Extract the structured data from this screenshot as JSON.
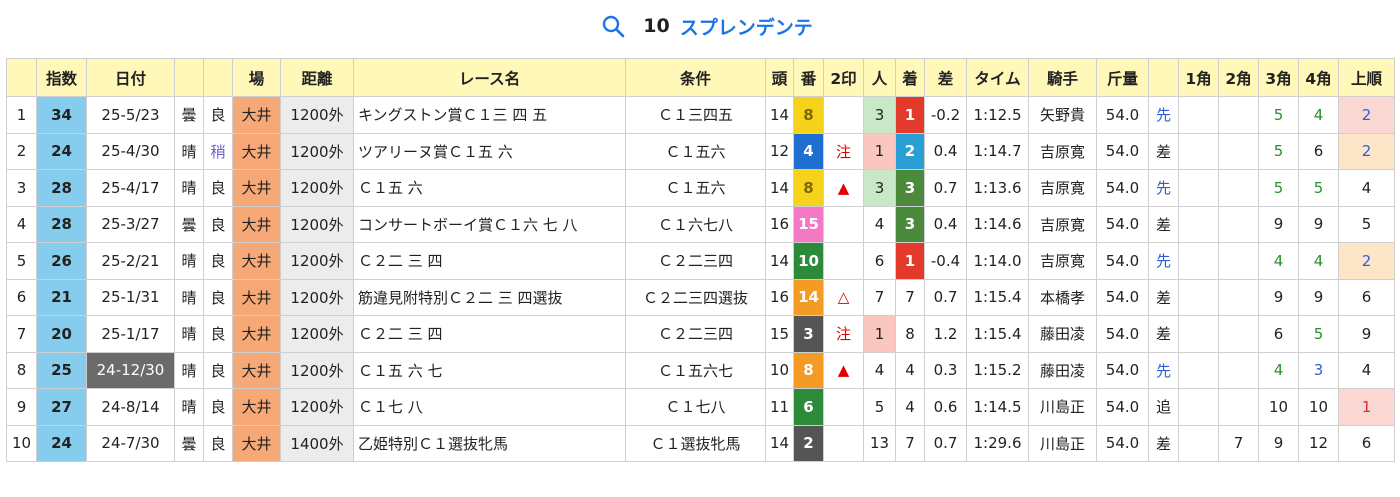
{
  "header": {
    "horse_number": "10",
    "horse_name": "スプレンデンテ"
  },
  "columns": [
    "",
    "指数",
    "日付",
    "",
    "",
    "場",
    "距離",
    "レース名",
    "条件",
    "頭",
    "番",
    "2印",
    "人",
    "着",
    "差",
    "タイム",
    "騎手",
    "斤量",
    "",
    "1角",
    "2角",
    "3角",
    "4角",
    "上順"
  ],
  "rows": [
    {
      "no": "1",
      "ix": "34",
      "date": "25-5/23",
      "wx": "曇",
      "track": "良",
      "place": "大井",
      "dist": "1200外",
      "race": "キングストン賞Ｃ１三 四 五",
      "cond": "Ｃ１三四五",
      "heads": "14",
      "gate": "8",
      "mark": "",
      "pop": "3",
      "fin": "1",
      "diff": "-0.2",
      "time": "1:12.5",
      "jockey": "矢野貴",
      "wt": "54.0",
      "style": "先",
      "c1": "",
      "c2": "",
      "c3": "5",
      "c4": "4",
      "agari": "2"
    },
    {
      "no": "2",
      "ix": "24",
      "date": "25-4/30",
      "wx": "晴",
      "track": "稍",
      "place": "大井",
      "dist": "1200外",
      "race": "ツアリーヌ賞Ｃ１五 六",
      "cond": "Ｃ１五六",
      "heads": "12",
      "gate": "4",
      "mark": "注",
      "pop": "1",
      "fin": "2",
      "diff": "0.4",
      "time": "1:14.7",
      "jockey": "吉原寛",
      "wt": "54.0",
      "style": "差",
      "c1": "",
      "c2": "",
      "c3": "5",
      "c4": "6",
      "agari": "2"
    },
    {
      "no": "3",
      "ix": "28",
      "date": "25-4/17",
      "wx": "晴",
      "track": "良",
      "place": "大井",
      "dist": "1200外",
      "race": "Ｃ１五 六",
      "cond": "Ｃ１五六",
      "heads": "14",
      "gate": "8",
      "mark": "▲",
      "pop": "3",
      "fin": "3",
      "diff": "0.7",
      "time": "1:13.6",
      "jockey": "吉原寛",
      "wt": "54.0",
      "style": "先",
      "c1": "",
      "c2": "",
      "c3": "5",
      "c4": "5",
      "agari": "4"
    },
    {
      "no": "4",
      "ix": "28",
      "date": "25-3/27",
      "wx": "曇",
      "track": "良",
      "place": "大井",
      "dist": "1200外",
      "race": "コンサートボーイ賞Ｃ１六 七 八",
      "cond": "Ｃ１六七八",
      "heads": "16",
      "gate": "15",
      "mark": "",
      "pop": "4",
      "fin": "3",
      "diff": "0.4",
      "time": "1:14.6",
      "jockey": "吉原寛",
      "wt": "54.0",
      "style": "差",
      "c1": "",
      "c2": "",
      "c3": "9",
      "c4": "9",
      "agari": "5"
    },
    {
      "no": "5",
      "ix": "26",
      "date": "25-2/21",
      "wx": "晴",
      "track": "良",
      "place": "大井",
      "dist": "1200外",
      "race": "Ｃ２二 三 四",
      "cond": "Ｃ２二三四",
      "heads": "14",
      "gate": "10",
      "mark": "",
      "pop": "6",
      "fin": "1",
      "diff": "-0.4",
      "time": "1:14.0",
      "jockey": "吉原寛",
      "wt": "54.0",
      "style": "先",
      "c1": "",
      "c2": "",
      "c3": "4",
      "c4": "4",
      "agari": "2"
    },
    {
      "no": "6",
      "ix": "21",
      "date": "25-1/31",
      "wx": "晴",
      "track": "良",
      "place": "大井",
      "dist": "1200外",
      "race": "筋違見附特別Ｃ２二 三 四選抜",
      "cond": "Ｃ２二三四選抜",
      "heads": "16",
      "gate": "14",
      "mark": "△",
      "pop": "7",
      "fin": "7",
      "diff": "0.7",
      "time": "1:15.4",
      "jockey": "本橋孝",
      "wt": "54.0",
      "style": "差",
      "c1": "",
      "c2": "",
      "c3": "9",
      "c4": "9",
      "agari": "6"
    },
    {
      "no": "7",
      "ix": "20",
      "date": "25-1/17",
      "wx": "晴",
      "track": "良",
      "place": "大井",
      "dist": "1200外",
      "race": "Ｃ２二 三 四",
      "cond": "Ｃ２二三四",
      "heads": "15",
      "gate": "3",
      "mark": "注",
      "pop": "1",
      "fin": "8",
      "diff": "1.2",
      "time": "1:15.4",
      "jockey": "藤田凌",
      "wt": "54.0",
      "style": "差",
      "c1": "",
      "c2": "",
      "c3": "6",
      "c4": "5",
      "agari": "9"
    },
    {
      "no": "8",
      "ix": "25",
      "date": "24-12/30",
      "wx": "晴",
      "track": "良",
      "place": "大井",
      "dist": "1200外",
      "race": "Ｃ１五 六 七",
      "cond": "Ｃ１五六七",
      "heads": "10",
      "gate": "8",
      "mark": "▲",
      "pop": "4",
      "fin": "4",
      "diff": "0.3",
      "time": "1:15.2",
      "jockey": "藤田凌",
      "wt": "54.0",
      "style": "先",
      "c1": "",
      "c2": "",
      "c3": "4",
      "c4": "3",
      "agari": "4"
    },
    {
      "no": "9",
      "ix": "27",
      "date": "24-8/14",
      "wx": "晴",
      "track": "良",
      "place": "大井",
      "dist": "1200外",
      "race": "Ｃ１七 八",
      "cond": "Ｃ１七八",
      "heads": "11",
      "gate": "6",
      "mark": "",
      "pop": "5",
      "fin": "4",
      "diff": "0.6",
      "time": "1:14.5",
      "jockey": "川島正",
      "wt": "54.0",
      "style": "追",
      "c1": "",
      "c2": "",
      "c3": "10",
      "c4": "10",
      "agari": "1"
    },
    {
      "no": "10",
      "ix": "24",
      "date": "24-7/30",
      "wx": "曇",
      "track": "良",
      "place": "大井",
      "dist": "1400外",
      "race": "乙姫特別Ｃ１選抜牝馬",
      "cond": "Ｃ１選抜牝馬",
      "heads": "14",
      "gate": "2",
      "mark": "",
      "pop": "13",
      "fin": "7",
      "diff": "0.7",
      "time": "1:29.6",
      "jockey": "川島正",
      "wt": "54.0",
      "style": "差",
      "c1": "",
      "c2": "7",
      "c3": "9",
      "c4": "12",
      "agari": "6"
    }
  ],
  "colors": {
    "header_bg": "#fff8b8",
    "index_bg": "#86ccec",
    "place_bg": "#f7a877",
    "title_blue": "#1a73e8"
  }
}
